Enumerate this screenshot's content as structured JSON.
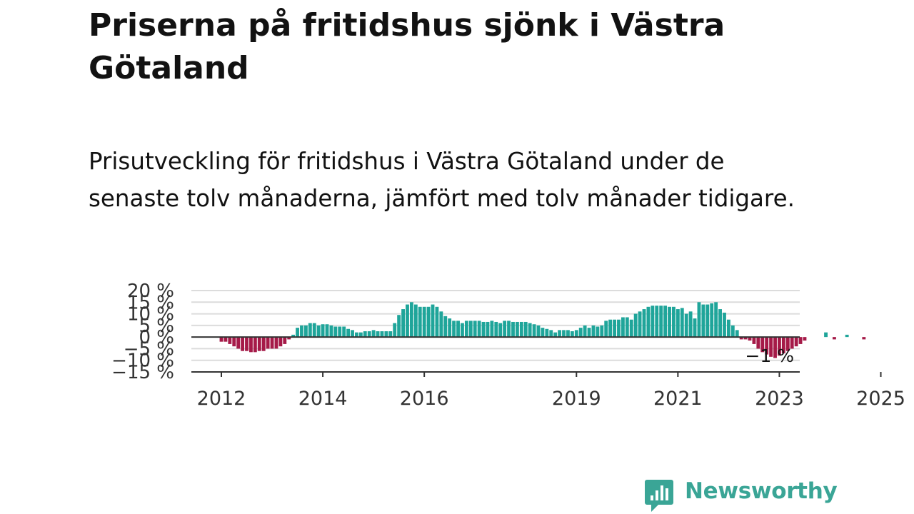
{
  "title": "Priserna på fritidshus sjönk i Västra Götaland",
  "subtitle": "Prisutveckling för fritidshus i Västra Götaland under de senaste tolv månaderna, jämfört med tolv månader tidigare.",
  "brand": {
    "name": "Newsworthy",
    "color": "#3aa596"
  },
  "colors": {
    "positive": "#1fa59a",
    "negative": "#a51a48",
    "axis": "#333333",
    "grid": "#dcdcdc",
    "text": "#121212"
  },
  "chart_data": {
    "type": "bar",
    "ylim": [
      -15,
      20
    ],
    "y_ticks": [
      20,
      15,
      10,
      5,
      0,
      -5,
      -10,
      -15
    ],
    "y_tick_labels": [
      "20 %",
      "15 %",
      "10 %",
      "5 %",
      "0 %",
      "−5 %",
      "−10 %",
      "−15 %"
    ],
    "x_ticks": [
      {
        "label": "2012",
        "index": 0
      },
      {
        "label": "2014",
        "index": 24
      },
      {
        "label": "2016",
        "index": 48
      },
      {
        "label": "2019",
        "index": 84
      },
      {
        "label": "2021",
        "index": 108
      },
      {
        "label": "2023",
        "index": 132
      },
      {
        "label": "2025",
        "index": 156
      }
    ],
    "start": "2012-01",
    "frequency": "monthly",
    "values": [
      -2,
      -2,
      -3,
      -4,
      -5,
      -6,
      -6,
      -6.5,
      -6.5,
      -6,
      -6,
      -5,
      -5,
      -5,
      -4,
      -3,
      -1,
      1,
      4,
      5,
      5,
      6,
      6,
      5,
      5.5,
      5.5,
      5,
      4.5,
      4.5,
      4.5,
      3.5,
      3,
      2,
      2,
      2.5,
      2.5,
      3,
      2.5,
      2.5,
      2.5,
      2.5,
      6,
      9.5,
      12,
      14,
      15,
      14,
      13,
      13,
      13,
      14,
      13,
      11,
      9,
      8,
      7,
      7,
      6,
      7,
      7,
      7,
      7,
      6.5,
      6.5,
      7,
      6.5,
      6,
      7,
      7,
      6.5,
      6.5,
      6.5,
      6.5,
      6,
      5.5,
      5,
      4,
      3.5,
      3,
      2,
      3,
      3,
      3,
      2.5,
      3,
      4,
      5,
      4,
      5,
      4.5,
      5,
      7,
      7.5,
      7.5,
      7.5,
      8.5,
      8.5,
      7.5,
      10,
      11,
      12,
      13,
      13.5,
      13.5,
      13.5,
      13.5,
      13,
      13,
      12,
      12.5,
      10,
      11,
      8,
      15,
      14,
      14,
      14.5,
      15,
      12,
      10.5,
      7.5,
      5,
      3,
      -1,
      -1,
      -1.5,
      -3,
      -5,
      -6.5,
      -7.5,
      -8.5,
      -9,
      -8,
      -7,
      -6,
      -5,
      -4,
      -3,
      -1.5,
      0,
      0,
      0,
      0,
      2,
      0,
      -1,
      0,
      0,
      1,
      0,
      0,
      0,
      -1
    ],
    "last_value_label": "−1 %"
  }
}
